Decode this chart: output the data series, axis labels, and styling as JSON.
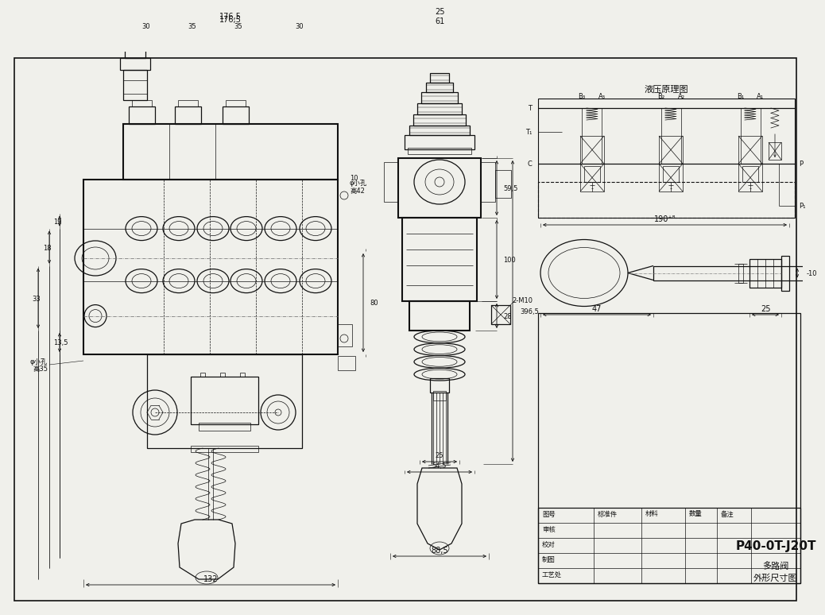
{
  "bg_color": "#f0f0eb",
  "lc": "#111111",
  "dc": "#111111",
  "title": "P40-0T-J20T",
  "subtitle1": "多路阀",
  "subtitle2": "外形尺寸图",
  "hyd_title": "液压原理图",
  "lw_thick": 1.5,
  "lw_med": 0.9,
  "lw_thin": 0.5,
  "fs": 7,
  "fs_small": 6
}
